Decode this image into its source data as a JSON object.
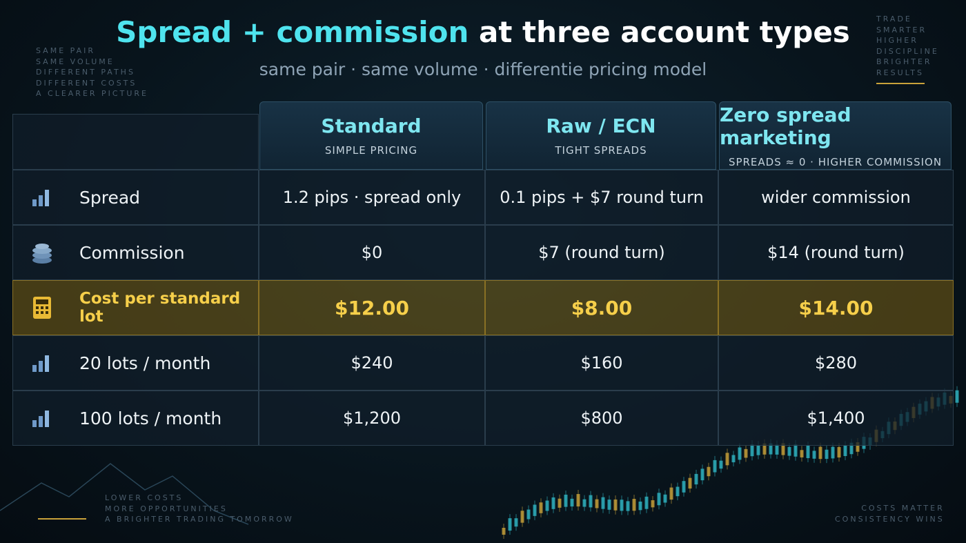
{
  "header": {
    "title_highlight": "Spread + commission",
    "title_rest": " at three account types",
    "subtitle": "same pair · same volume · differentie pricing model"
  },
  "decor": {
    "top_left": [
      "SAME PAIR",
      "SAME VOLUME",
      "DIFFERENT PATHS",
      "DIFFERENT COSTS",
      "A CLEARER PICTURE"
    ],
    "top_right": [
      "TRADE",
      "SMARTER",
      "HIGHER",
      "DISCIPLINE",
      "BRIGHTER",
      "RESULTS"
    ],
    "bottom_left": [
      "LOWER COSTS",
      "MORE OPPORTUNITIES",
      "A BRIGHTER TRADING TOMORROW"
    ],
    "bottom_right": [
      "COSTS MATTER",
      "CONSISTENCY WINS"
    ]
  },
  "table": {
    "columns": [
      {
        "name": "Standard",
        "note": "SIMPLE PRICING"
      },
      {
        "name": "Raw / ECN",
        "note": "TIGHT SPREADS"
      },
      {
        "name": "Zero spread marketing",
        "note": "SPREADS ≈ 0 · HIGHER COMMISSION"
      }
    ],
    "rows": [
      {
        "label": "Spread",
        "cells": [
          "1.2 pips · spread only",
          "0.1 pips + $7 round turn",
          "wider commission"
        ]
      },
      {
        "label": "Commission",
        "cells": [
          "$0",
          "$7 (round turn)",
          "$14 (round turn)"
        ]
      },
      {
        "label": "Cost per standard lot",
        "cells": [
          "$12.00",
          "$8.00",
          "$14.00"
        ]
      },
      {
        "label": "20 lots / month",
        "cells": [
          "$240",
          "$160",
          "$280"
        ]
      },
      {
        "label": "100 lots / month",
        "cells": [
          "$1,200",
          "$800",
          "$1,400"
        ]
      }
    ]
  }
}
